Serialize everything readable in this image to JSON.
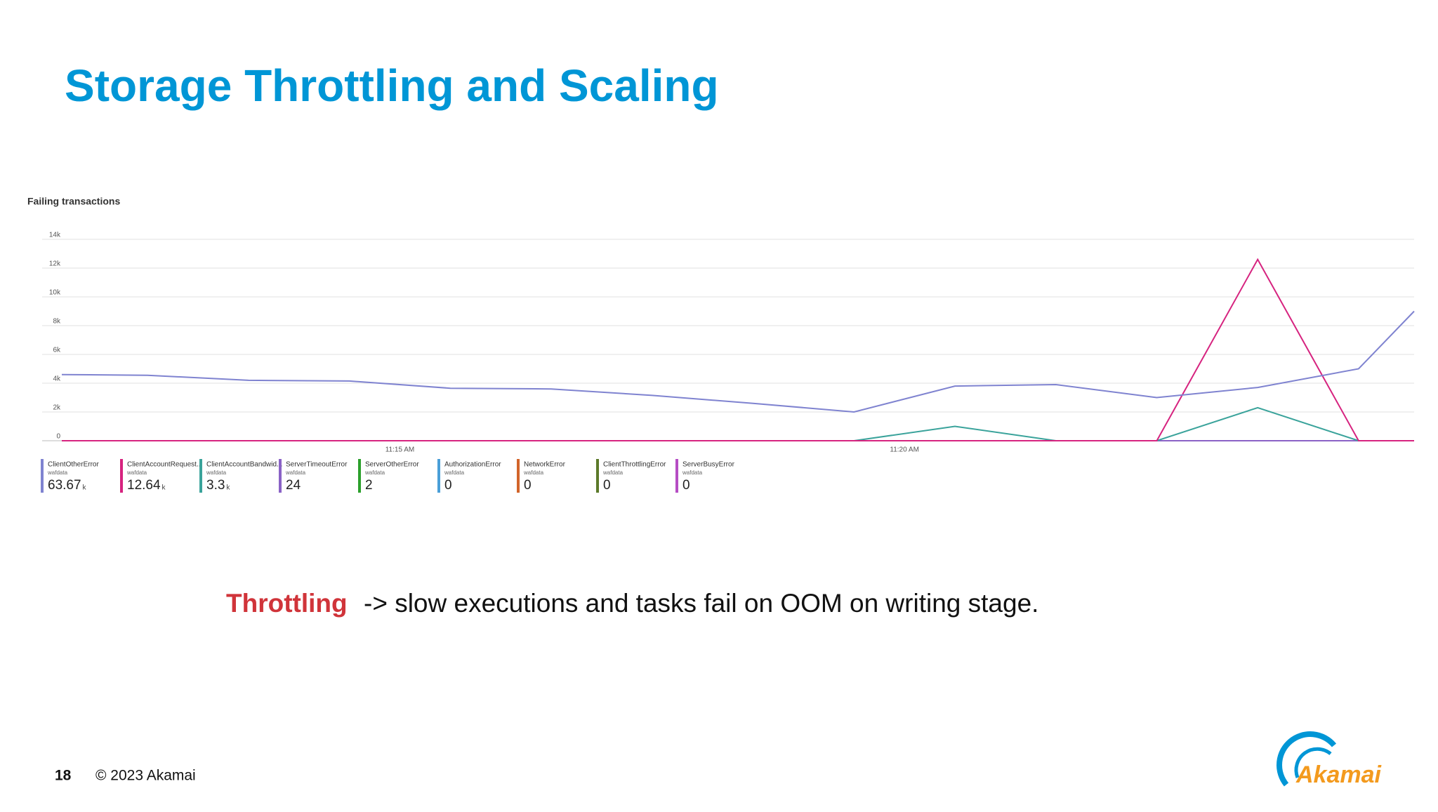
{
  "slide": {
    "title": "Storage Throttling and Scaling",
    "caption_highlight": "Throttling",
    "caption_rest": "-> slow executions and tasks fail on OOM on writing stage.",
    "page_number": "18",
    "copyright": "© 2023 Akamai",
    "logo": "Akamai"
  },
  "chart_data": {
    "type": "line",
    "title": "Failing transactions",
    "x": [
      671.65,
      672.5,
      673.5,
      674.5,
      675.5,
      676.5,
      677.5,
      678.5,
      679.5,
      680.5,
      681.5,
      682.5,
      683.5,
      684.5,
      685.05
    ],
    "xlim": [
      671.65,
      685.05
    ],
    "xticks": [
      {
        "value": 675,
        "label": "11:15 AM"
      },
      {
        "value": 680,
        "label": "11:20 AM"
      }
    ],
    "ylim": [
      0,
      14000
    ],
    "yticks": [
      0,
      {
        "value": 2000,
        "label": "2k"
      },
      {
        "value": 4000,
        "label": "4k"
      },
      {
        "value": 6000,
        "label": "6k"
      },
      {
        "value": 8000,
        "label": "8k"
      },
      {
        "value": 10000,
        "label": "10k"
      },
      {
        "value": 12000,
        "label": "12k"
      },
      {
        "value": 14000,
        "label": "14k"
      }
    ],
    "grid": true,
    "series": [
      {
        "name": "ClientOtherError",
        "source": "wafdata",
        "total": "63.67",
        "unit": "k",
        "color": "#7f83d0",
        "values": [
          4600,
          4550,
          4200,
          4150,
          3650,
          3600,
          3150,
          2600,
          2000,
          3800,
          3900,
          3000,
          3700,
          5000,
          9000
        ]
      },
      {
        "name": "ClientAccountRequest...",
        "source": "wafdata",
        "total": "12.64",
        "unit": "k",
        "color": "#d6237f",
        "values": [
          0,
          0,
          0,
          0,
          0,
          0,
          0,
          0,
          0,
          0,
          0,
          0,
          12600,
          0,
          0
        ]
      },
      {
        "name": "ClientAccountBandwid...",
        "source": "wafdata",
        "total": "3.3",
        "unit": "k",
        "color": "#3aa39b",
        "values": [
          0,
          0,
          0,
          0,
          0,
          0,
          0,
          0,
          0,
          1000,
          0,
          0,
          2300,
          0,
          0
        ]
      },
      {
        "name": "ServerTimeoutError",
        "source": "wafdata",
        "total": "24",
        "color": "#8a62c6",
        "values": [
          0,
          0,
          0,
          0,
          0,
          0,
          0,
          0,
          0,
          0,
          0,
          0,
          0,
          0,
          0
        ]
      },
      {
        "name": "ServerOtherError",
        "source": "wafdata",
        "total": "2",
        "color": "#2ca02c",
        "values": [
          0,
          0,
          0,
          0,
          0,
          0,
          0,
          0,
          0,
          0,
          0,
          0,
          0,
          0,
          0
        ]
      },
      {
        "name": "AuthorizationError",
        "source": "wafdata",
        "total": "0",
        "color": "#4a9fd8",
        "values": [
          0,
          0,
          0,
          0,
          0,
          0,
          0,
          0,
          0,
          0,
          0,
          0,
          0,
          0,
          0
        ]
      },
      {
        "name": "NetworkError",
        "source": "wafdata",
        "total": "0",
        "color": "#d2642a",
        "values": [
          0,
          0,
          0,
          0,
          0,
          0,
          0,
          0,
          0,
          0,
          0,
          0,
          0,
          0,
          0
        ]
      },
      {
        "name": "ClientThrottlingError",
        "source": "wafdata",
        "total": "0",
        "color": "#5c7a2a",
        "values": [
          0,
          0,
          0,
          0,
          0,
          0,
          0,
          0,
          0,
          0,
          0,
          0,
          0,
          0,
          0
        ]
      },
      {
        "name": "ServerBusyError",
        "source": "wafdata",
        "total": "0",
        "color": "#b64dc4",
        "values": [
          0,
          0,
          0,
          0,
          0,
          0,
          0,
          0,
          0,
          0,
          0,
          0,
          0,
          0,
          0
        ]
      }
    ]
  }
}
